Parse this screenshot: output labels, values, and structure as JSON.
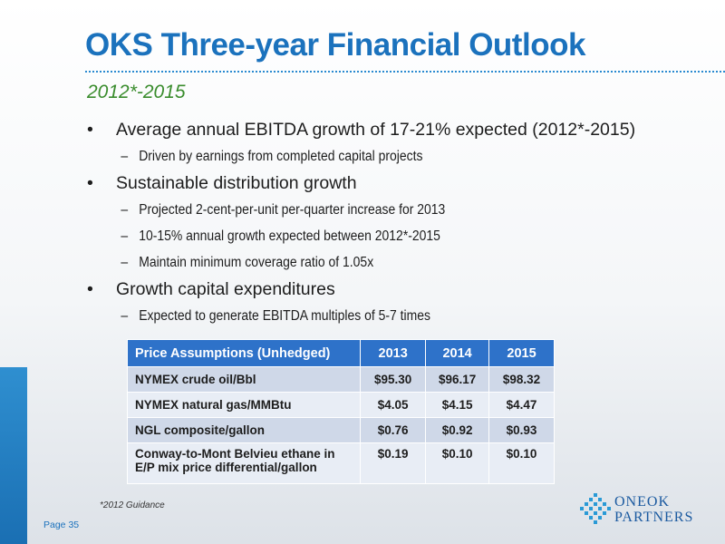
{
  "title": "OKS Three-year Financial Outlook",
  "subtitle": "2012*-2015",
  "bullets": [
    {
      "text": "Average annual EBITDA growth of 17-21% expected (2012*-2015)",
      "subs": [
        "Driven by earnings from completed capital projects"
      ]
    },
    {
      "text": "Sustainable distribution growth",
      "subs": [
        "Projected 2-cent-per-unit per-quarter increase for 2013",
        "10-15% annual growth expected between 2012*-2015",
        "Maintain minimum coverage ratio of 1.05x"
      ]
    },
    {
      "text": "Growth capital expenditures",
      "subs": [
        "Expected to generate EBITDA multiples of 5-7 times"
      ]
    }
  ],
  "bullet_symbol": "•",
  "dash_symbol": "–",
  "table": {
    "headers": [
      "Price Assumptions (Unhedged)",
      "2013",
      "2014",
      "2015"
    ],
    "rows": [
      [
        "NYMEX crude oil/Bbl",
        "$95.30",
        "$96.17",
        "$98.32"
      ],
      [
        "NYMEX natural gas/MMBtu",
        "$4.05",
        "$4.15",
        "$4.47"
      ],
      [
        "NGL composite/gallon",
        "$0.76",
        "$0.92",
        "$0.93"
      ],
      [
        "Conway-to-Mont Belvieu ethane in E/P mix price differential/gallon",
        "$0.19",
        "$0.10",
        "$0.10"
      ]
    ]
  },
  "footnote": "*2012 Guidance",
  "page_number": "Page 35",
  "logo": {
    "line1": "ONEOK",
    "line2": "PARTNERS"
  },
  "colors": {
    "title": "#1b72bd",
    "subtitle": "#3a8c2d",
    "table_header": "#2e72c9",
    "accent_bar": "#1a6fb3"
  }
}
